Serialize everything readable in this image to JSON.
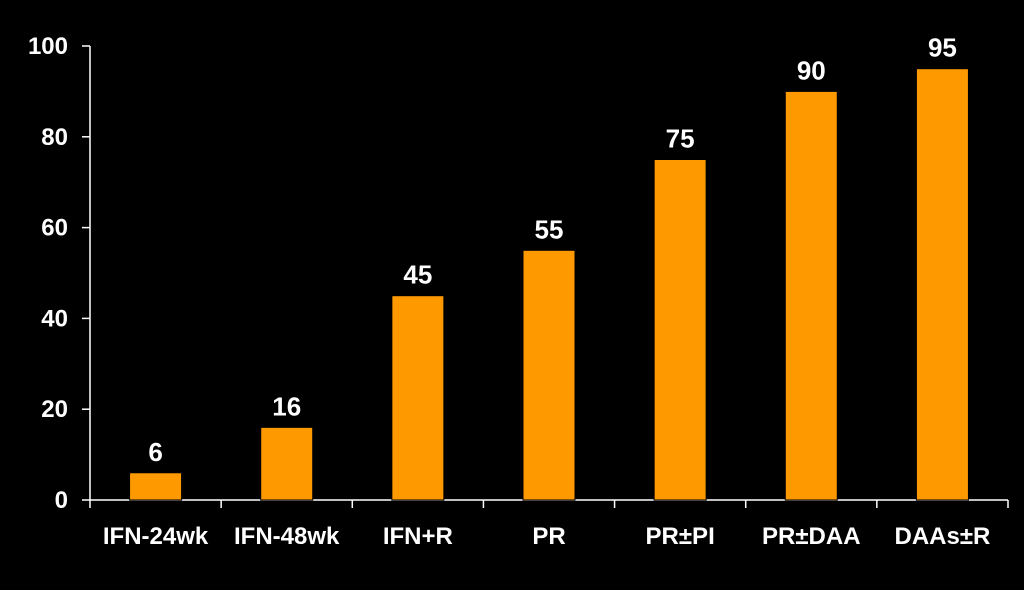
{
  "chart_data": {
    "type": "bar",
    "title": "",
    "xlabel": "",
    "ylabel": "",
    "categories": [
      "IFN-24wk",
      "IFN-48wk",
      "IFN+R",
      "PR",
      "PR±PI",
      "PR±DAA",
      "DAAs±R"
    ],
    "values": [
      6,
      16,
      45,
      55,
      75,
      90,
      95
    ],
    "ylim": [
      0,
      100
    ],
    "yticks": [
      0,
      20,
      40,
      60,
      80,
      100
    ],
    "grid": false,
    "colors": {
      "background": "#000000",
      "bar_fill": "#FF9900",
      "bar_stroke": "#000000",
      "axis": "#FFFFFF",
      "text": "#FFFFFF"
    }
  }
}
